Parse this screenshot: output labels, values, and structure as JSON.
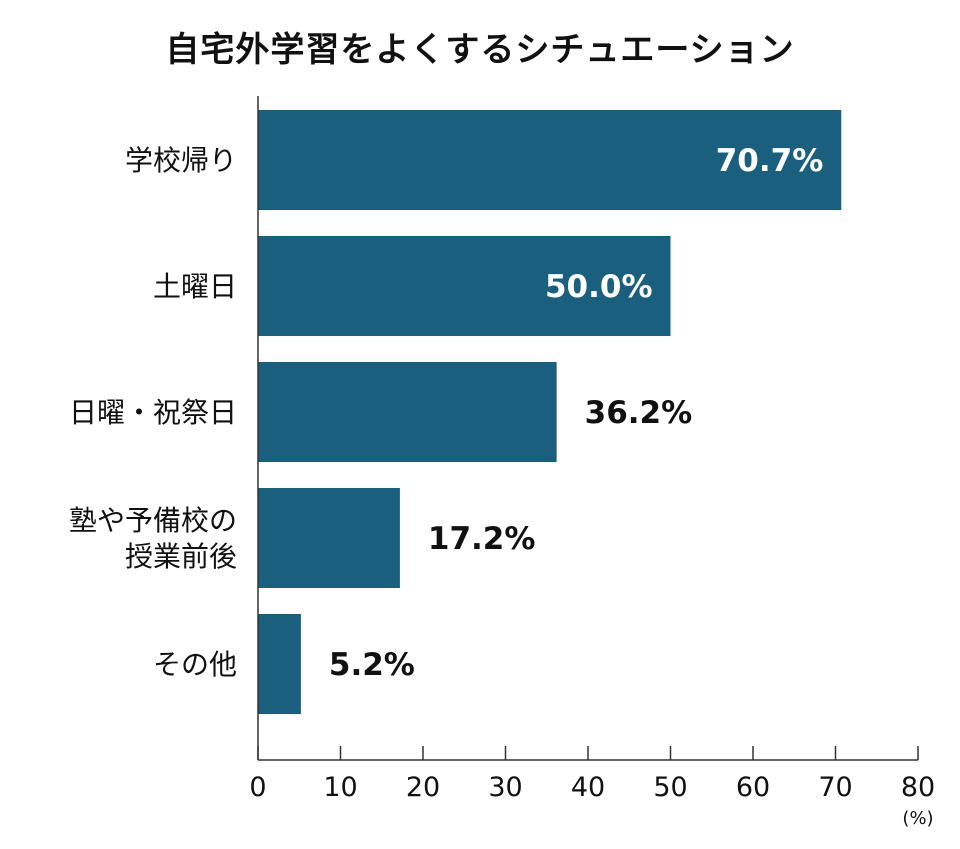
{
  "chart_data": {
    "type": "bar",
    "orientation": "horizontal",
    "title": "自宅外学習をよくするシチュエーション",
    "categories": [
      [
        "学校帰り"
      ],
      [
        "土曜日"
      ],
      [
        "日曜・祝祭日"
      ],
      [
        "塾や予備校の",
        "授業前後"
      ],
      [
        "その他"
      ]
    ],
    "values": [
      70.7,
      50.0,
      36.2,
      17.2,
      5.2
    ],
    "value_labels": [
      "70.7%",
      "50.0%",
      "36.2%",
      "17.2%",
      "5.2%"
    ],
    "xlim": [
      0,
      80
    ],
    "x_ticks": [
      0,
      10,
      20,
      30,
      40,
      50,
      60,
      70,
      80
    ],
    "x_unit": "(%)",
    "grid": false,
    "bar_color": "#1b5f7e",
    "label_inside_color": "#ffffff",
    "label_outside_color": "#111111",
    "axis_color": "#333333"
  }
}
